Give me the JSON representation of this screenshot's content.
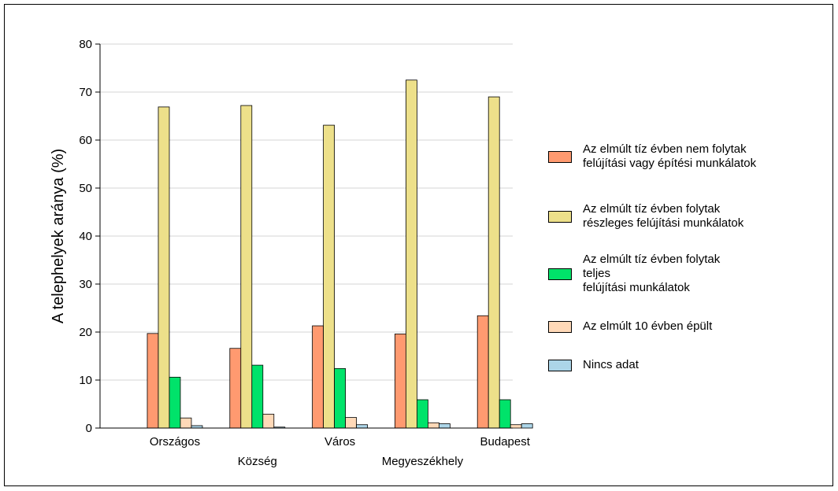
{
  "chart_data": {
    "type": "bar",
    "title": "",
    "xlabel": "",
    "ylabel": "A telephelyek aránya (%)",
    "ylim": [
      0,
      80
    ],
    "yticks": [
      "0",
      "10",
      "20",
      "30",
      "40",
      "50",
      "60",
      "70",
      "80"
    ],
    "grid": true,
    "legend_position": "right",
    "categories": [
      "Országos",
      "Község",
      "Város",
      "Megyeszékhely",
      "Budapest"
    ],
    "series": [
      {
        "name": "Az elmúlt tíz évben nem folytak\nfelújítási vagy építési munkálatok",
        "color": "#ff9a70",
        "values": [
          19.7,
          16.6,
          21.3,
          19.6,
          23.4
        ]
      },
      {
        "name": "Az elmúlt tíz évben folytak\nrészleges felújítási munkálatok",
        "color": "#ede08a",
        "values": [
          66.9,
          67.2,
          63.1,
          72.5,
          69.0
        ]
      },
      {
        "name": "Az elmúlt tíz évben folytak\nteljes\nfelújítási munkálatok",
        "color": "#00e36a",
        "values": [
          10.6,
          13.1,
          12.4,
          5.9,
          5.9
        ]
      },
      {
        "name": "Az elmúlt 10 évben épült",
        "color": "#ffd9b8",
        "values": [
          2.1,
          2.9,
          2.2,
          1.1,
          0.7
        ]
      },
      {
        "name": "Nincs adat",
        "color": "#acd5e8",
        "values": [
          0.5,
          0.2,
          0.7,
          0.9,
          0.9
        ]
      }
    ]
  }
}
